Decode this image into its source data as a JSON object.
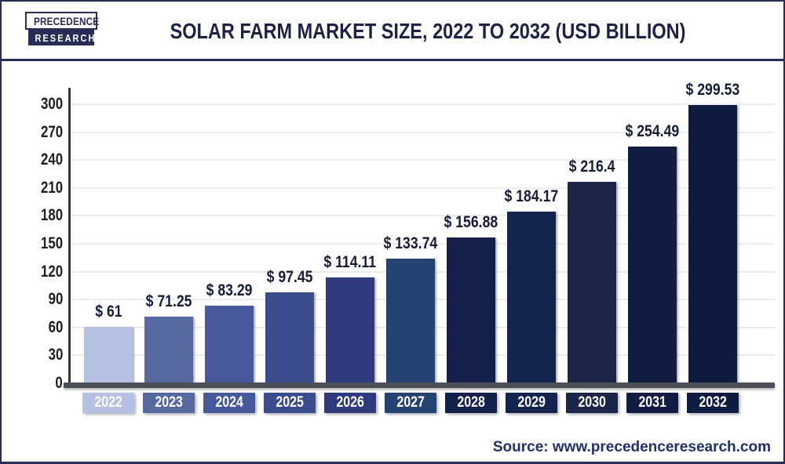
{
  "logo": {
    "line1": "PRECEDENCE",
    "line2": "RESEARCH"
  },
  "header": {
    "title": "SOLAR FARM MARKET SIZE, 2022 TO 2032 (USD BILLION)"
  },
  "source": {
    "text": "Source: www.precedenceresearch.com"
  },
  "colors": {
    "frame_navy": "#272d54",
    "title_text": "#1b2243",
    "axis": "#35353f",
    "baseline": "#4b4d58",
    "gridline": "#ededed",
    "value_label_text": "#141c3a",
    "year_label_text": "#ffffff"
  },
  "chart_data": {
    "type": "bar",
    "title": "Solar Farm Market Size, 2022 to 2032 (USD Billion)",
    "unit": "USD Billion",
    "categories": [
      "2022",
      "2023",
      "2024",
      "2025",
      "2026",
      "2027",
      "2028",
      "2029",
      "2030",
      "2031",
      "2032"
    ],
    "values": [
      61,
      71.25,
      83.29,
      97.45,
      114.11,
      133.74,
      156.88,
      184.17,
      216.4,
      254.49,
      299.53
    ],
    "value_labels": [
      "$ 61",
      "$ 71.25",
      "$ 83.29",
      "$ 97.45",
      "$ 114.11",
      "$ 133.74",
      "$ 156.88",
      "$ 184.17",
      "$ 216.4",
      "$ 254.49",
      "$ 299.53"
    ],
    "bar_colors": [
      "#b5c1e3",
      "#56699f",
      "#47599a",
      "#3a4c8d",
      "#2e3a7b",
      "#254370",
      "#13204b",
      "#15244f",
      "#1b2648",
      "#121d44",
      "#0f1c42"
    ],
    "xlabel": "",
    "ylabel": "",
    "ylim": [
      0,
      300
    ],
    "yticks": [
      0,
      30,
      60,
      90,
      120,
      150,
      180,
      210,
      240,
      270,
      300
    ],
    "grid": "horizontal",
    "legend": "none"
  }
}
